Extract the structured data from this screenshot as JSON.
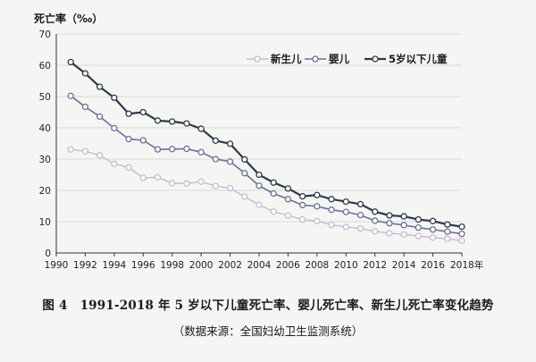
{
  "chart_data": {
    "type": "line",
    "ylabel": "死亡率（‰）",
    "x_unit_label": "年",
    "ylim": [
      0,
      70
    ],
    "yticks": [
      0,
      10,
      20,
      30,
      40,
      50,
      60,
      70
    ],
    "xlim": [
      1990,
      2018
    ],
    "xticks": [
      1990,
      1992,
      1994,
      1996,
      1998,
      2000,
      2002,
      2004,
      2006,
      2008,
      2010,
      2012,
      2014,
      2016,
      2018
    ],
    "grid": "horizontal",
    "legend_position": "top-right",
    "x": [
      1991,
      1992,
      1993,
      1994,
      1995,
      1996,
      1997,
      1998,
      1999,
      2000,
      2001,
      2002,
      2003,
      2004,
      2005,
      2006,
      2007,
      2008,
      2009,
      2010,
      2011,
      2012,
      2013,
      2014,
      2015,
      2016,
      2017,
      2018
    ],
    "series": [
      {
        "name": "新生儿",
        "color": "#c9b9d3",
        "values": [
          33.1,
          32.5,
          31.2,
          28.5,
          27.3,
          24.0,
          24.2,
          22.3,
          22.2,
          22.8,
          21.4,
          20.7,
          18.0,
          15.4,
          13.2,
          12.0,
          10.7,
          10.2,
          9.0,
          8.3,
          7.8,
          6.9,
          6.3,
          5.9,
          5.4,
          4.9,
          4.5,
          3.9
        ]
      },
      {
        "name": "婴儿",
        "color": "#6e6f99",
        "values": [
          50.2,
          46.7,
          43.6,
          39.9,
          36.4,
          36.0,
          33.1,
          33.2,
          33.3,
          32.2,
          30.0,
          29.2,
          25.5,
          21.5,
          19.0,
          17.2,
          15.3,
          14.9,
          13.8,
          13.1,
          12.1,
          10.3,
          9.5,
          8.9,
          8.1,
          7.5,
          6.8,
          6.1
        ]
      },
      {
        "name": "5岁以下儿童",
        "color": "#2b3a4a",
        "values": [
          61.0,
          57.4,
          53.1,
          49.6,
          44.5,
          45.0,
          42.3,
          42.0,
          41.4,
          39.7,
          35.9,
          34.9,
          29.9,
          25.0,
          22.5,
          20.6,
          18.1,
          18.5,
          17.2,
          16.4,
          15.6,
          13.2,
          12.0,
          11.7,
          10.7,
          10.2,
          9.1,
          8.4
        ]
      }
    ]
  },
  "caption": {
    "figure_no": "图 4",
    "title": "1991-2018 年 5 岁以下儿童死亡率、婴儿死亡率、新生儿死亡率变化趋势",
    "source": "（数据来源：全国妇幼卫生监测系统）"
  },
  "style": {
    "grid_color": "#d9d9d9",
    "axis_color": "#333333"
  }
}
